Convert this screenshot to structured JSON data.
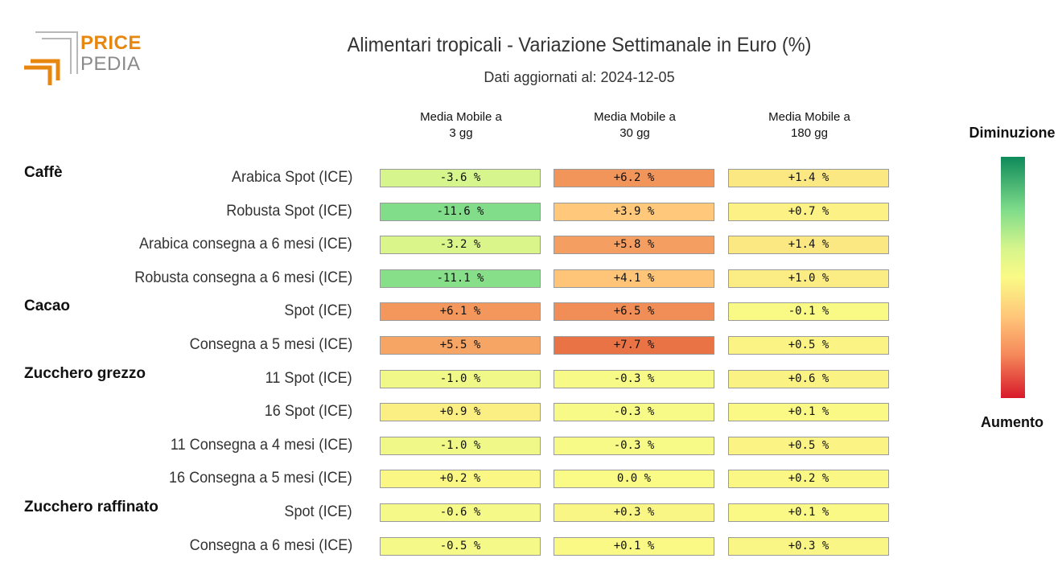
{
  "logo": {
    "line1": "PRICE",
    "line2": "PEDIA"
  },
  "chart_data": {
    "type": "table",
    "title": "Alimentari tropicali - Variazione Settimanale in Euro (%)",
    "subtitle": "Dati aggiornati al: 2024-12-05",
    "columns": [
      "Media Mobile a\n3 gg",
      "Media Mobile a\n30 gg",
      "Media Mobile a\n180 gg"
    ],
    "groups": [
      {
        "name": "Caffè",
        "rows": [
          {
            "label": "Arabica Spot (ICE)",
            "values": [
              -3.6,
              6.2,
              1.4
            ],
            "labels": [
              "-3.6 %",
              "+6.2 %",
              "+1.4 %"
            ]
          },
          {
            "label": "Robusta Spot (ICE)",
            "values": [
              -11.6,
              3.9,
              0.7
            ],
            "labels": [
              "-11.6 %",
              "+3.9 %",
              "+0.7 %"
            ]
          },
          {
            "label": "Arabica consegna a 6 mesi (ICE)",
            "values": [
              -3.2,
              5.8,
              1.4
            ],
            "labels": [
              "-3.2 %",
              "+5.8 %",
              "+1.4 %"
            ]
          },
          {
            "label": "Robusta consegna a 6 mesi (ICE)",
            "values": [
              -11.1,
              4.1,
              1.0
            ],
            "labels": [
              "-11.1 %",
              "+4.1 %",
              "+1.0 %"
            ]
          }
        ]
      },
      {
        "name": "Cacao",
        "rows": [
          {
            "label": "Spot (ICE)",
            "values": [
              6.1,
              6.5,
              -0.1
            ],
            "labels": [
              "+6.1 %",
              "+6.5 %",
              "-0.1 %"
            ]
          },
          {
            "label": "Consegna a 5 mesi (ICE)",
            "values": [
              5.5,
              7.7,
              0.5
            ],
            "labels": [
              "+5.5 %",
              "+7.7 %",
              "+0.5 %"
            ]
          }
        ]
      },
      {
        "name": "Zucchero grezzo",
        "rows": [
          {
            "label": "11 Spot (ICE)",
            "values": [
              -1.0,
              -0.3,
              0.6
            ],
            "labels": [
              "-1.0 %",
              "-0.3 %",
              "+0.6 %"
            ]
          },
          {
            "label": "16 Spot (ICE)",
            "values": [
              0.9,
              -0.3,
              0.1
            ],
            "labels": [
              "+0.9 %",
              "-0.3 %",
              "+0.1 %"
            ]
          },
          {
            "label": "11 Consegna a 4 mesi (ICE)",
            "values": [
              -1.0,
              -0.3,
              0.5
            ],
            "labels": [
              "-1.0 %",
              "-0.3 %",
              "+0.5 %"
            ]
          },
          {
            "label": "16 Consegna a 5 mesi (ICE)",
            "values": [
              0.2,
              0.0,
              0.2
            ],
            "labels": [
              "+0.2 %",
              "0.0 %",
              "+0.2 %"
            ]
          }
        ]
      },
      {
        "name": "Zucchero raffinato",
        "rows": [
          {
            "label": "Spot (ICE)",
            "values": [
              -0.6,
              0.3,
              0.1
            ],
            "labels": [
              "-0.6 %",
              "+0.3 %",
              "+0.1 %"
            ]
          },
          {
            "label": "Consegna a 6 mesi (ICE)",
            "values": [
              -0.5,
              0.1,
              0.3
            ],
            "labels": [
              "-0.5 %",
              "+0.1 %",
              "+0.3 %"
            ]
          }
        ]
      }
    ],
    "legend": {
      "top": "Diminuzione",
      "bottom": "Aumento"
    }
  }
}
